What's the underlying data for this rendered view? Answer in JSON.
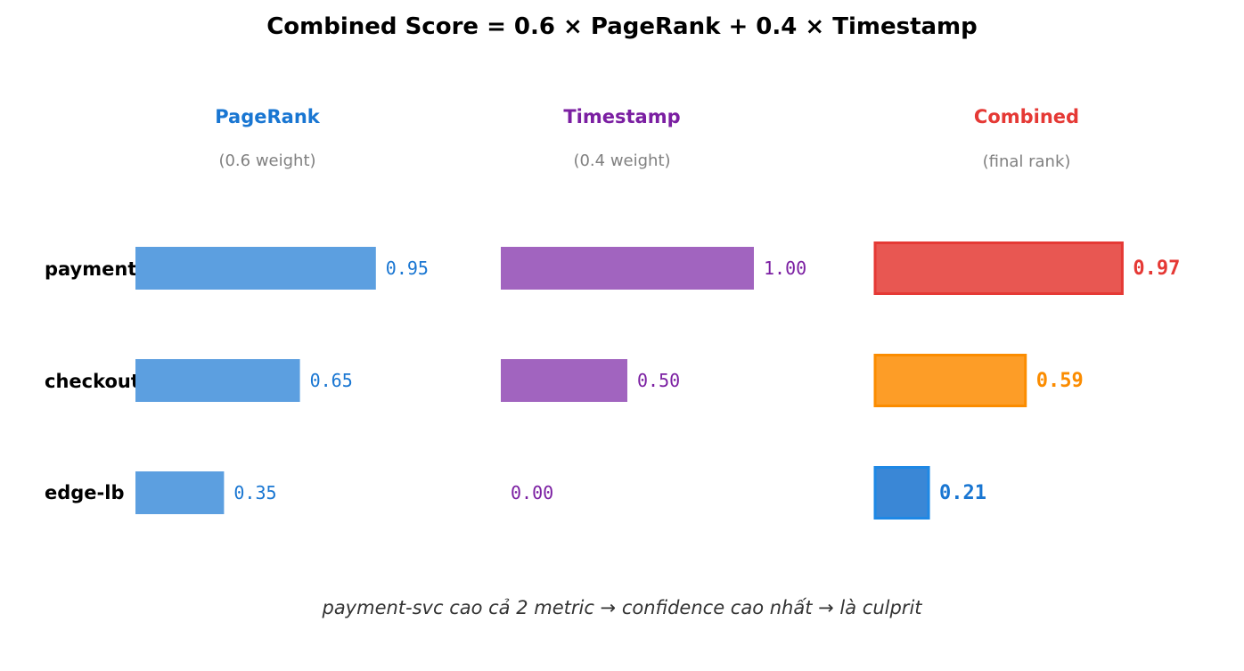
{
  "chart_data": {
    "type": "bar",
    "title": "Combined Score = 0.6 × PageRank + 0.4 × Timestamp",
    "categories": [
      "payment-svc",
      "checkout-svc",
      "edge-lb"
    ],
    "series": [
      {
        "name": "PageRank",
        "subtitle": "(0.6 weight)",
        "color": "#1976d2",
        "bar_color": "#5c9fe0",
        "values": [
          0.95,
          0.65,
          0.35
        ],
        "labels": [
          "0.95",
          "0.65",
          "0.35"
        ]
      },
      {
        "name": "Timestamp",
        "subtitle": "(0.4 weight)",
        "color": "#7b1fa2",
        "bar_color": "#a164bf",
        "values": [
          1.0,
          0.5,
          0.0
        ],
        "labels": [
          "1.00",
          "0.50",
          "0.00"
        ]
      },
      {
        "name": "Combined",
        "subtitle": "(final rank)",
        "color": "#e53935",
        "values": [
          0.97,
          0.59,
          0.21
        ],
        "labels": [
          "0.97",
          "0.59",
          "0.21"
        ],
        "bar_colors": [
          "#e85752",
          "#fd9d27",
          "#3a87d6"
        ],
        "edge_colors": [
          "#e53935",
          "#fb8c00",
          "#1e88e5"
        ],
        "label_colors": [
          "#e53935",
          "#fb8c00",
          "#1976d2"
        ]
      }
    ],
    "xlim": [
      0,
      1
    ],
    "grid": false,
    "legend": "none"
  },
  "footnote": "payment-svc cao cả 2 metric → confidence cao nhất → là culprit"
}
